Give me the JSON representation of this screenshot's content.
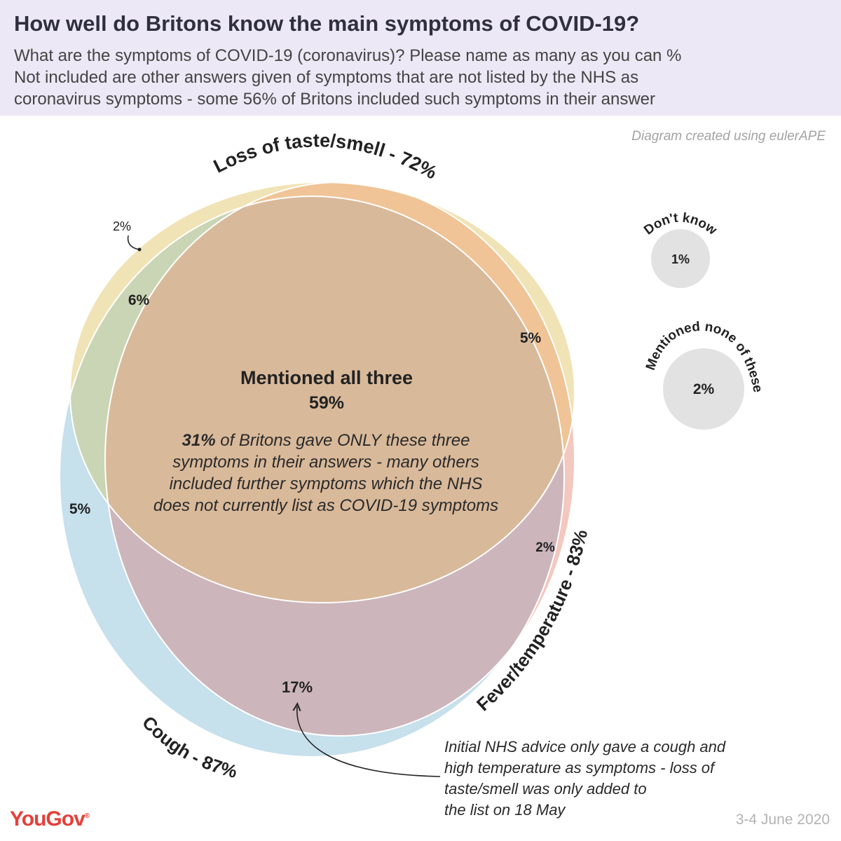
{
  "header": {
    "title": "How well do Britons know the main symptoms of COVID-19?",
    "subtitle_lines": [
      "What are the symptoms of COVID-19 (coronavirus)? Please name as many as you can %",
      "Not included are other answers given of symptoms that are not listed by the NHS as",
      "coronavirus symptoms - some 56% of Britons included such symptoms in their answer"
    ]
  },
  "credit": "Diagram created using eulerAPE",
  "sets": {
    "taste": {
      "label": "Loss of taste/smell - 72%",
      "color": "#f0e3b5"
    },
    "fever": {
      "label": "Fever/temperature - 83%",
      "color": "#f3c8bf"
    },
    "cough": {
      "label": "Cough - 87%",
      "color": "#c6e0ec"
    }
  },
  "regions": {
    "all_three": {
      "title": "Mentioned all three",
      "value": "59%",
      "color": "#d8b99a"
    },
    "taste_only": "2%",
    "taste_cough": "6%",
    "taste_fever": "5%",
    "cough_only": "5%",
    "fever_only": "2%",
    "cough_fever": "17%"
  },
  "colors": {
    "taste_cough": "#c9d5b4",
    "taste_fever": "#f0c496",
    "cough_fever": "#ccb5bb"
  },
  "center_note": {
    "bold": "31%",
    "lines": [
      " of Britons gave ONLY these three",
      "symptoms in their answers - many others",
      "included further symptoms which the NHS",
      "does not currently list as COVID-19 symptoms"
    ]
  },
  "annotation_lines": [
    "Initial NHS advice only gave a cough and",
    "high temperature as symptoms - loss of",
    "taste/smell was only added to",
    "the list on 18 May"
  ],
  "side_circles": {
    "dont_know": {
      "label": "Don't know",
      "value": "1%"
    },
    "none": {
      "label": "Mentioned none of these",
      "value": "2%"
    }
  },
  "footer": {
    "brand": "YouGov",
    "date": "3-4 June 2020"
  }
}
